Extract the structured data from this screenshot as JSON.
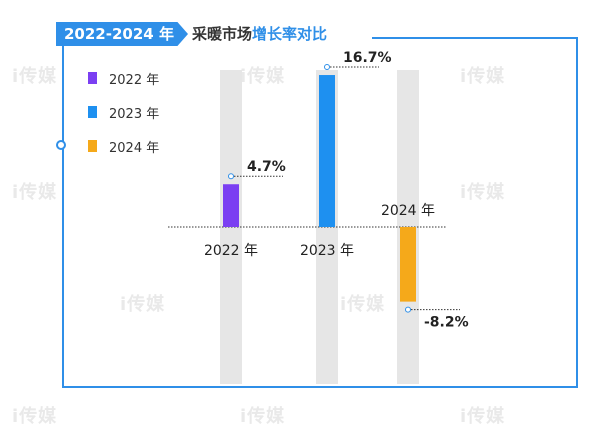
{
  "title": {
    "badge": "2022-2024 年度",
    "prefix": "采暖市场",
    "highlight": "增长率对比"
  },
  "colors": {
    "accent": "#2f8fe8",
    "track": "#e6e6e6",
    "series": [
      "#7b3ff2",
      "#1e90f0",
      "#f5a91a"
    ]
  },
  "legend": [
    "2022 年",
    "2023 年",
    "2024 年"
  ],
  "watermark": "i传媒",
  "chart_data": {
    "type": "bar",
    "categories": [
      "2022 年",
      "2023 年",
      "2024 年"
    ],
    "values": [
      4.7,
      16.7,
      -8.2
    ],
    "value_labels": [
      "4.7%",
      "16.7%",
      "-8.2%"
    ],
    "unit": "%",
    "title": "采暖市场增长率对比",
    "ylim": [
      -20,
      20
    ]
  }
}
